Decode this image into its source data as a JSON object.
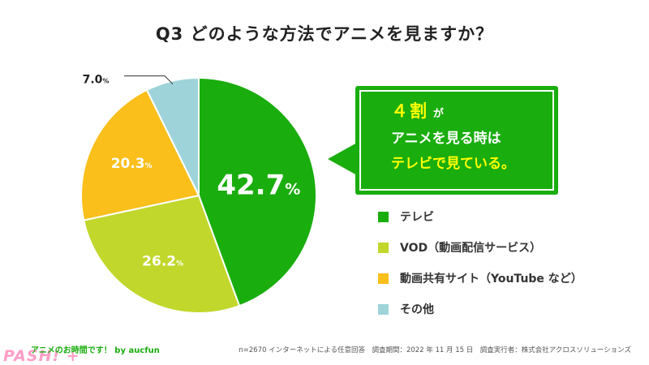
{
  "title": "Q3 どのような方法でアニメを見ますか？",
  "chart_data": {
    "type": "pie",
    "title": "Q3 どのような方法でアニメを見ますか？",
    "categories": [
      "テレビ",
      "VOD（動画配信サービス）",
      "動画共有サイト（YouTube など）",
      "その他"
    ],
    "values": [
      42.7,
      26.2,
      20.3,
      7.0
    ],
    "labels": [
      "42.7",
      "26.2",
      "20.3",
      "7.0"
    ],
    "unit": "%",
    "colors": [
      "#1aad0e",
      "#c1d72b",
      "#fbbf1c",
      "#9ed3da"
    ],
    "start": "12 o'clock, clockwise",
    "legend_position": "right"
  },
  "callout": {
    "line1_big": "４割",
    "line1_small": "が",
    "line2": "アニメを見る時は",
    "line3_highlight": "テレビで見ている。"
  },
  "footer": {
    "left": "アニメのお時間です！ by aucfun",
    "logo": "PASH! +",
    "right": "n=2670 インターネットによる任意回答　調査期間：2022 年 11 月 15 日　調査実行者：株式会社アクロスソリューションズ"
  }
}
